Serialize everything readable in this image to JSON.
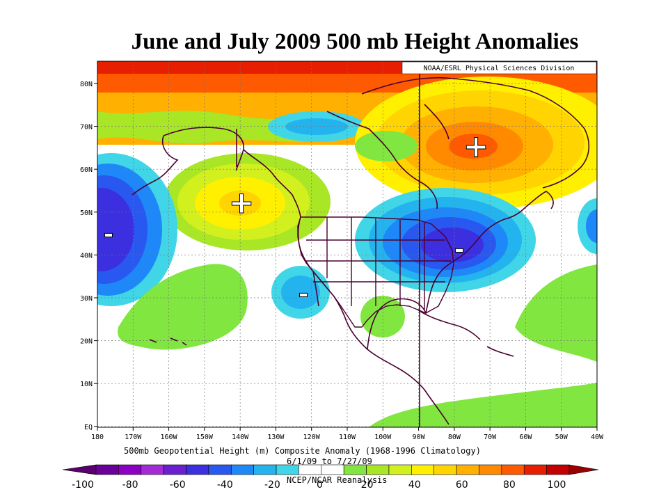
{
  "slide": {
    "title": "June and July 2009 500 mb Height Anomalies"
  },
  "map": {
    "credit": "NOAA/ESRL Physical Sciences Division",
    "lat_labels": [
      "80N",
      "70N",
      "60N",
      "50N",
      "40N",
      "30N",
      "20N",
      "10N",
      "EQ"
    ],
    "lon_labels": [
      "180",
      "170W",
      "160W",
      "150W",
      "140W",
      "130W",
      "120W",
      "110W",
      "100W",
      "90W",
      "80W",
      "70W",
      "60W",
      "50W",
      "40W"
    ],
    "caption_line1": "500mb Geopotential Height (m) Composite Anomaly (1968-1996 Climatology)",
    "caption_line2": "6/1/09 to 7/27/09",
    "caption_line3": "NCEP/NCAR Reanalysis",
    "anomaly_signs": [
      {
        "id": "alaska-gulf",
        "sign": "+"
      },
      {
        "id": "greenland-hudson",
        "sign": "+"
      },
      {
        "id": "central-pacific",
        "sign": "-"
      },
      {
        "id": "eastern-us",
        "sign": "-"
      },
      {
        "id": "baja-california",
        "sign": "-"
      }
    ]
  },
  "colorbar": {
    "labels": [
      "-100",
      "-80",
      "-60",
      "-40",
      "-20",
      "0",
      "20",
      "40",
      "60",
      "80",
      "100"
    ],
    "colors": [
      "#6a0097",
      "#8b00c4",
      "#a32bd6",
      "#6a1fd0",
      "#3c2fe0",
      "#2858f0",
      "#1e88f8",
      "#23b4f0",
      "#40d6e8",
      "#ffffff",
      "#ffffff",
      "#82e640",
      "#a8e626",
      "#d2ef1e",
      "#fff000",
      "#ffd400",
      "#ffb000",
      "#ff8a00",
      "#ff5a00",
      "#e81e00",
      "#c40000"
    ]
  },
  "colors": {
    "cb_arrow_left": "#5a006e",
    "cb_arrow_right": "#9b0000"
  }
}
